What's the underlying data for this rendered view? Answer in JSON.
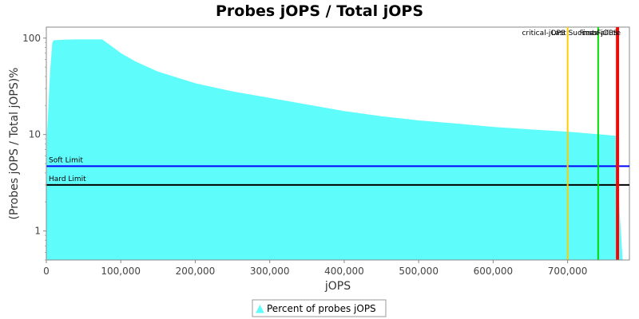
{
  "chart_data": {
    "type": "area",
    "title": "Probes jOPS / Total jOPS",
    "xlabel": "jOPS",
    "ylabel": "(Probes jOPS / Total jOPS)%",
    "y_scale": "log",
    "xlim": [
      0,
      783000
    ],
    "ylim": [
      0.5,
      130
    ],
    "x_ticks": [
      {
        "value": 0,
        "label": "0"
      },
      {
        "value": 100000,
        "label": "100,000"
      },
      {
        "value": 200000,
        "label": "200,000"
      },
      {
        "value": 300000,
        "label": "300,000"
      },
      {
        "value": 400000,
        "label": "400,000"
      },
      {
        "value": 500000,
        "label": "500,000"
      },
      {
        "value": 600000,
        "label": "600,000"
      },
      {
        "value": 700000,
        "label": "700,000"
      }
    ],
    "y_ticks": [
      {
        "value": 1,
        "label": "1"
      },
      {
        "value": 10,
        "label": "10"
      },
      {
        "value": 100,
        "label": "100"
      }
    ],
    "series": [
      {
        "name": "Percent of probes jOPS",
        "color": "#5ffcfc",
        "x": [
          0,
          1000,
          5000,
          8000,
          10000,
          20000,
          40000,
          60000,
          75000,
          90000,
          100000,
          120000,
          150000,
          200000,
          250000,
          300000,
          350000,
          400000,
          450000,
          500000,
          550000,
          600000,
          650000,
          700000,
          740000,
          765000,
          768000,
          770000,
          774000
        ],
        "y": [
          0.5,
          10,
          45,
          90,
          95,
          96,
          97,
          97,
          97,
          80,
          70,
          57,
          45,
          34,
          28,
          24,
          20.5,
          17.5,
          15.5,
          14,
          13,
          12,
          11.3,
          10.7,
          10.1,
          9.7,
          3,
          1.5,
          0.5
        ]
      }
    ],
    "reference_lines": [
      {
        "orientation": "horizontal",
        "label": "Soft Limit",
        "value": 4.7,
        "color": "#0000ff"
      },
      {
        "orientation": "horizontal",
        "label": "Hard Limit",
        "value": 3.0,
        "color": "#000000"
      },
      {
        "orientation": "vertical",
        "label": "critical-jOPS",
        "value": 700000,
        "color": "#ffcc00"
      },
      {
        "orientation": "vertical",
        "label": "Last Success",
        "value": 741000,
        "color": "#00dd00"
      },
      {
        "orientation": "vertical",
        "label": "max-jOPS",
        "value": 766000,
        "color": "#ff0000"
      },
      {
        "orientation": "vertical",
        "label": "First Failure",
        "value": 768000,
        "color": "#ff0000"
      }
    ],
    "legend": {
      "position": "bottom-center",
      "entries": [
        "Percent of probes jOPS"
      ]
    },
    "grid": false
  }
}
